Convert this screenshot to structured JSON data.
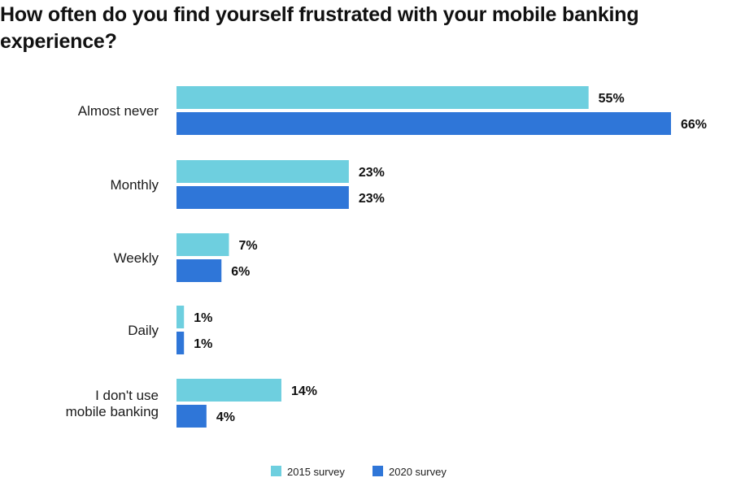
{
  "chart_data": {
    "type": "bar",
    "orientation": "horizontal",
    "title": "How often do you find yourself frustrated with your mobile banking experience?",
    "categories": [
      [
        "Almost never"
      ],
      [
        "Monthly"
      ],
      [
        "Weekly"
      ],
      [
        "Daily"
      ],
      [
        "I don't use",
        "mobile banking"
      ]
    ],
    "series": [
      {
        "name": "2015 survey",
        "color": "#6ecfdf",
        "values": [
          55,
          23,
          7,
          1,
          14
        ],
        "labels": [
          "55%",
          "23%",
          "7%",
          "1%",
          "14%"
        ]
      },
      {
        "name": "2020 survey",
        "color": "#2f76d8",
        "values": [
          66,
          23,
          6,
          1,
          4
        ],
        "labels": [
          "66%",
          "23%",
          "6%",
          "1%",
          "4%"
        ]
      }
    ],
    "value_unit": "%",
    "xlim": [
      0,
      70
    ],
    "grid": false,
    "legend_position": "bottom-center"
  }
}
